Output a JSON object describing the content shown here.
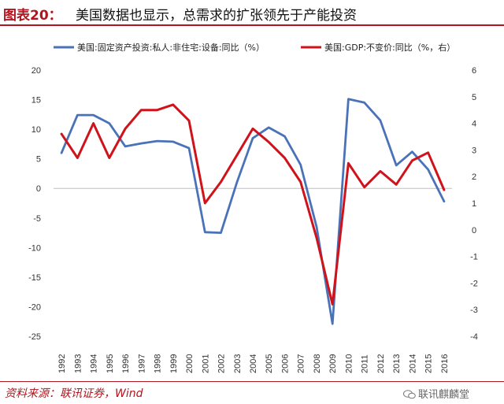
{
  "header": {
    "figure_label": "图表20：",
    "title": "美国数据也显示，总需求的扩张领先于产能投资"
  },
  "footer": {
    "source": "资料来源：联讯证券，Wind",
    "watermark": "联讯麒麟堂",
    "watermark_icon": "wechat-icon"
  },
  "colors": {
    "series1": "#4a72b8",
    "series2": "#d0131b",
    "accent": "#b0151f"
  },
  "chart_data": {
    "type": "line",
    "x": [
      "1992",
      "1993",
      "1994",
      "1995",
      "1996",
      "1997",
      "1998",
      "1999",
      "2000",
      "2001",
      "2002",
      "2003",
      "2004",
      "2005",
      "2006",
      "2007",
      "2008",
      "2009",
      "2010",
      "2011",
      "2012",
      "2013",
      "2014",
      "2015",
      "2016"
    ],
    "series": [
      {
        "name": "美国:固定资产投资:私人:非住宅:设备:同比（%）",
        "axis": "left",
        "color": "#4a72b8",
        "values": [
          6.0,
          12.4,
          12.4,
          11.0,
          7.1,
          7.6,
          8.0,
          7.9,
          6.8,
          -7.4,
          -7.5,
          1.0,
          8.5,
          10.3,
          8.8,
          4.0,
          -6.5,
          -22.9,
          15.1,
          14.5,
          11.5,
          3.9,
          6.2,
          3.2,
          -2.2
        ]
      },
      {
        "name": "美国:GDP:不变价:同比（%，右）",
        "axis": "right",
        "color": "#d0131b",
        "values": [
          3.6,
          2.7,
          4.0,
          2.7,
          3.8,
          4.5,
          4.5,
          4.7,
          4.1,
          1.0,
          1.8,
          2.8,
          3.8,
          3.3,
          2.7,
          1.8,
          -0.3,
          -2.8,
          2.5,
          1.6,
          2.2,
          1.7,
          2.6,
          2.9,
          1.5
        ]
      }
    ],
    "ylim_left": [
      -25,
      20
    ],
    "ylim_right": [
      -4,
      6
    ],
    "yticks_left": [
      "20",
      "15",
      "10",
      "5",
      "0",
      "-5",
      "-10",
      "-15",
      "-20",
      "-25"
    ],
    "yticks_right": [
      "6",
      "5",
      "4",
      "3",
      "2",
      "1",
      "0",
      "-1",
      "-2",
      "-3",
      "-4"
    ],
    "grid": false,
    "legend_position": "top"
  }
}
